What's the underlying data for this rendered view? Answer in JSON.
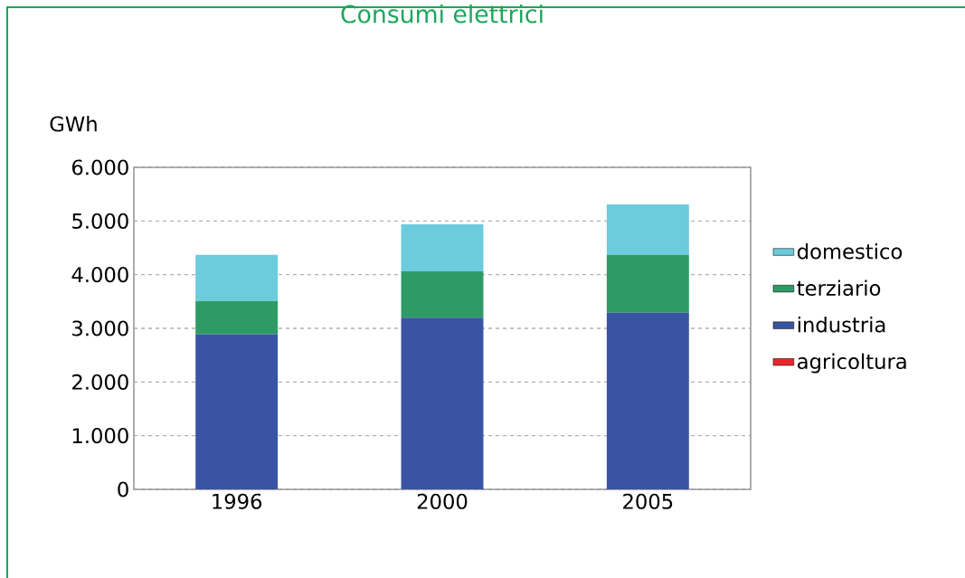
{
  "chart_data": {
    "type": "bar",
    "stacked": true,
    "title": "Consumi elettrici",
    "ylabel": "GWh",
    "categories": [
      "1996",
      "2000",
      "2005"
    ],
    "series": [
      {
        "name": "agricoltura",
        "color": "#e8262a",
        "values": [
          null,
          null,
          null
        ]
      },
      {
        "name": "industria",
        "color": "#3a54a4",
        "values": [
          2890,
          3200,
          3290
        ]
      },
      {
        "name": "terziario",
        "color": "#2e9b66",
        "values": [
          620,
          860,
          1080
        ]
      },
      {
        "name": "domestico",
        "color": "#6ccbdd",
        "values": [
          860,
          880,
          940
        ]
      }
    ],
    "ylim": [
      0,
      6000
    ],
    "yticks": [
      0,
      {
        "value": 1000,
        "label": "1.000"
      },
      {
        "value": 2000,
        "label": "2.000"
      },
      {
        "value": 3000,
        "label": "3.000"
      },
      {
        "value": 4000,
        "label": "4.000"
      },
      {
        "value": 5000,
        "label": "5.000"
      },
      {
        "value": 6000,
        "label": "6.000"
      }
    ],
    "grid": "y",
    "legend": "right"
  }
}
